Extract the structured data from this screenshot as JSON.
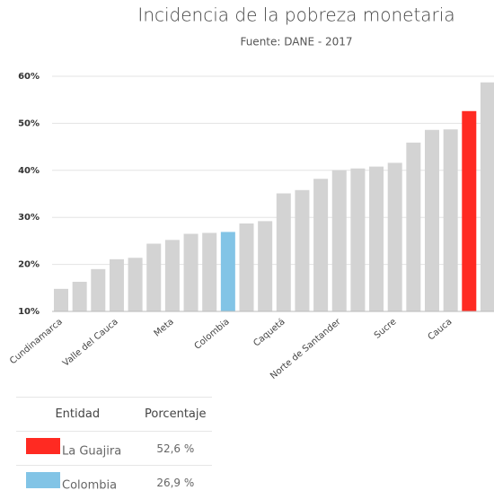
{
  "chart_data": {
    "type": "bar",
    "title": "Incidencia de la pobreza monetaria",
    "subtitle": "Fuente: DANE - 2017",
    "categories": [
      "Cundinamarca",
      null,
      null,
      "Valle del Cauca",
      null,
      null,
      "Meta",
      null,
      null,
      "Colombia",
      null,
      null,
      "Caquetá",
      null,
      null,
      "Norte de Santander",
      null,
      null,
      "Sucre",
      null,
      null,
      "Cauca",
      null,
      null
    ],
    "values": [
      14.8,
      16.3,
      19.0,
      21.1,
      21.4,
      24.4,
      25.2,
      26.5,
      26.7,
      26.9,
      28.7,
      29.2,
      35.1,
      35.8,
      38.2,
      40.0,
      40.4,
      40.8,
      41.6,
      45.9,
      48.6,
      48.7,
      52.6,
      58.7
    ],
    "colors": [
      "#d3d3d3",
      "#d3d3d3",
      "#d3d3d3",
      "#d3d3d3",
      "#d3d3d3",
      "#d3d3d3",
      "#d3d3d3",
      "#d3d3d3",
      "#d3d3d3",
      "#82c4e6",
      "#d3d3d3",
      "#d3d3d3",
      "#d3d3d3",
      "#d3d3d3",
      "#d3d3d3",
      "#d3d3d3",
      "#d3d3d3",
      "#d3d3d3",
      "#d3d3d3",
      "#d3d3d3",
      "#d3d3d3",
      "#d3d3d3",
      "#ff2a22",
      "#d3d3d3"
    ],
    "ylim": [
      10,
      60
    ],
    "yticks": [
      {
        "value": 10,
        "label": "10%"
      },
      {
        "value": 20,
        "label": "20%"
      },
      {
        "value": 30,
        "label": "30%"
      },
      {
        "value": 40,
        "label": "40%"
      },
      {
        "value": 50,
        "label": "50%"
      },
      {
        "value": 60,
        "label": "60%"
      }
    ],
    "grid": true
  },
  "table": {
    "header": [
      "Entidad",
      "Porcentaje"
    ],
    "rows": [
      {
        "color": "#ff2a22",
        "name": "La Guajira",
        "value": "52,6 %"
      },
      {
        "color": "#82c4e6",
        "name": "Colombia",
        "value": "26,9 %"
      }
    ]
  }
}
